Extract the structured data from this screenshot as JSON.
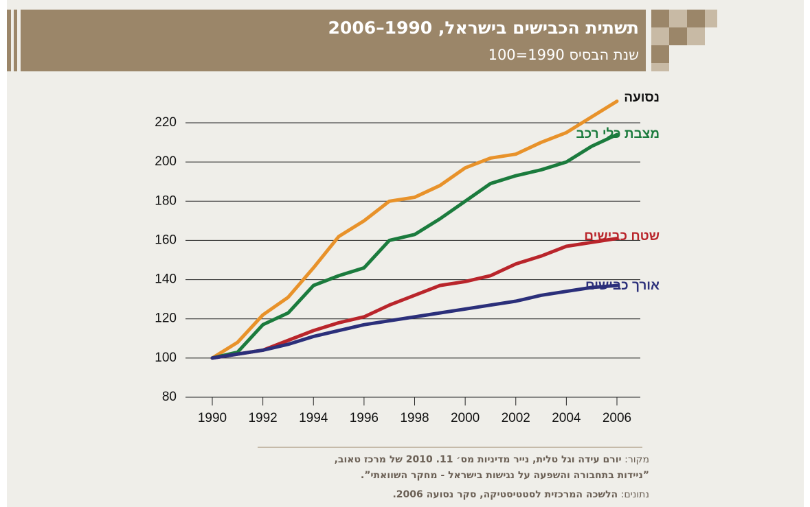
{
  "chart_data": {
    "type": "line",
    "title": "תשתית הכבישים בישראל, 1990–2006",
    "subtitle": "שנת הבסיס 1990=100",
    "x": [
      1990,
      1991,
      1992,
      1993,
      1994,
      1995,
      1996,
      1997,
      1998,
      1999,
      2000,
      2001,
      2002,
      2003,
      2004,
      2005,
      2006
    ],
    "series": [
      {
        "name": "נסועה",
        "color": "#e8922a",
        "label_color": "#111111",
        "values": [
          100,
          108,
          122,
          131,
          146,
          162,
          170,
          180,
          182,
          188,
          197,
          202,
          204,
          210,
          215,
          223,
          231
        ]
      },
      {
        "name": "מצבת כלי רכב",
        "color": "#1b7b3d",
        "label_color": "#1b7b3d",
        "values": [
          100,
          103,
          117,
          123,
          137,
          142,
          146,
          160,
          163,
          171,
          180,
          189,
          193,
          196,
          200,
          208,
          214
        ]
      },
      {
        "name": "שטח כבישים",
        "color": "#b9252b",
        "label_color": "#b9252b",
        "values": [
          100,
          102,
          104,
          109,
          114,
          118,
          121,
          127,
          132,
          137,
          139,
          142,
          148,
          152,
          157,
          159,
          161
        ]
      },
      {
        "name": "אורך כבישים",
        "color": "#2b2f7a",
        "label_color": "#2b2f7a",
        "values": [
          100,
          102,
          104,
          107,
          111,
          114,
          117,
          119,
          121,
          123,
          125,
          127,
          129,
          132,
          134,
          136,
          137
        ]
      }
    ],
    "xlim": [
      1990,
      2006
    ],
    "xticks": [
      1990,
      1992,
      1994,
      1996,
      1998,
      2000,
      2002,
      2004,
      2006
    ],
    "ylim": [
      80,
      220
    ],
    "yticks": [
      80,
      100,
      120,
      140,
      160,
      180,
      200,
      220
    ],
    "grid": true,
    "source": {
      "label": "מקור:",
      "lines": [
        "יורם עידה וגל טלית, נייר מדיניות מס׳ 11. 2010 של מרכז טאוב,",
        "”ניידות בתחבורה והשפעה על נגישות בישראל - מחקר השוואתי”."
      ]
    },
    "data_source": {
      "label": "נתונים:",
      "text": "הלשכה המרכזית לסטטיסטיקה, סקר נסועה 2006."
    }
  }
}
